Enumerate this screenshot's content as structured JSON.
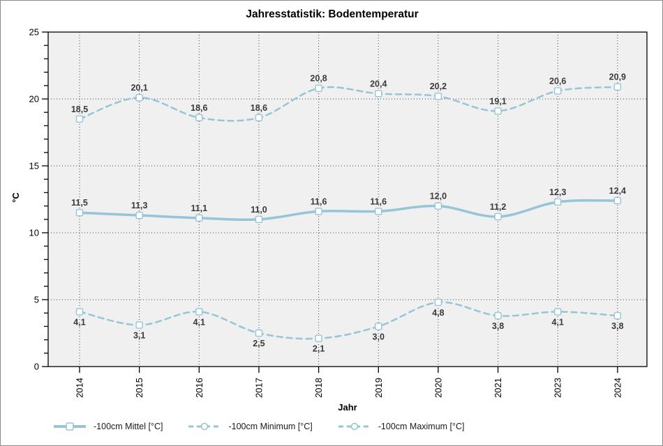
{
  "chart_data": {
    "type": "line",
    "title": "Jahresstatistik: Bodentemperatur",
    "xlabel": "Jahr",
    "ylabel": "°C",
    "ylim": [
      0,
      25
    ],
    "y_major_ticks": [
      0,
      5,
      10,
      15,
      20,
      25
    ],
    "y_minor_step": 1,
    "grid": "dotted major gridlines, horizontal at 5/10/15/20 and vertical at each year",
    "plot_background": "#f0f0f0",
    "line_color": "#96c5d7",
    "label_color": "#3a3a3a",
    "legend_position": "bottom",
    "categories": [
      "2014",
      "2015",
      "2016",
      "2017",
      "2018",
      "2019",
      "2020",
      "2021",
      "2023",
      "2024"
    ],
    "series": [
      {
        "name": "-100cm Mittel [°C]",
        "style": "solid",
        "label_side": "above",
        "values": [
          11.5,
          11.3,
          11.1,
          11.0,
          11.6,
          11.6,
          12.0,
          11.2,
          12.3,
          12.4
        ],
        "point_labels": [
          "11,5",
          "11,3",
          "11,1",
          "11,0",
          "11,6",
          "11,6",
          "12,0",
          "11,2",
          "12,3",
          "12,4"
        ]
      },
      {
        "name": "-100cm Minimum [°C]",
        "style": "dashed",
        "label_side": "below",
        "values": [
          4.1,
          3.1,
          4.1,
          2.5,
          2.1,
          3.0,
          4.8,
          3.8,
          4.1,
          3.8
        ],
        "point_labels": [
          "4,1",
          "3,1",
          "4,1",
          "2,5",
          "2,1",
          "3,0",
          "4,8",
          "3,8",
          "4,1",
          "3,8"
        ]
      },
      {
        "name": "-100cm Maximum [°C]",
        "style": "dashed",
        "label_side": "above",
        "values": [
          18.5,
          20.1,
          18.6,
          18.6,
          20.8,
          20.4,
          20.2,
          19.1,
          20.6,
          20.9
        ],
        "point_labels": [
          "18,5",
          "20,1",
          "18,6",
          "18,6",
          "20,8",
          "20,4",
          "20,2",
          "19,1",
          "20,6",
          "20,9"
        ]
      }
    ]
  }
}
